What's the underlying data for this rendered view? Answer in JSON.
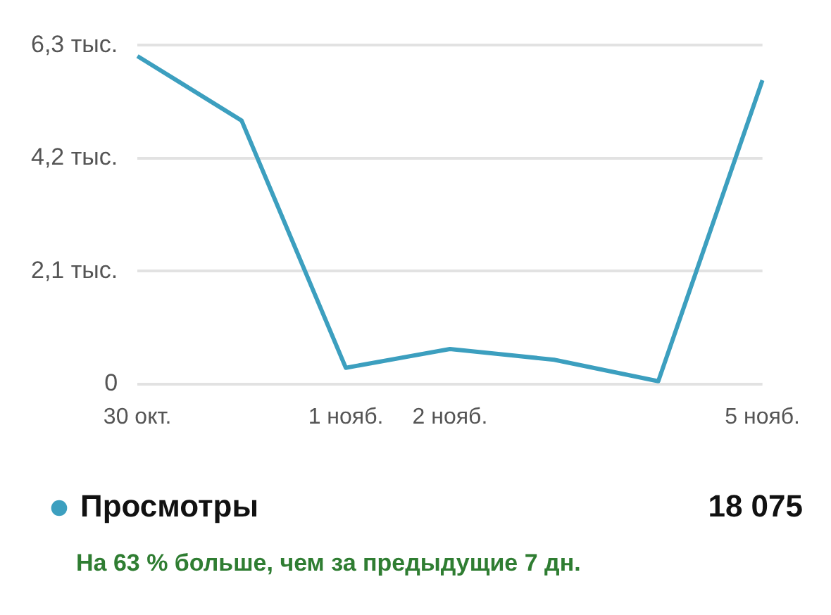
{
  "chart_data": {
    "type": "line",
    "categories": [
      "30 окт.",
      null,
      "1 нояб.",
      "2 нояб.",
      null,
      null,
      "5 нояб."
    ],
    "series": [
      {
        "name": "Просмотры",
        "color": "#3c9fbf",
        "values": [
          6.1,
          4.9,
          0.3,
          0.65,
          0.45,
          0.05,
          5.65
        ]
      }
    ],
    "ylim": [
      0,
      6.3
    ],
    "yticks": [
      0,
      {
        "value": 2.1,
        "label": "2,1 тыс."
      },
      {
        "value": 4.2,
        "label": "4,2 тыс."
      },
      {
        "value": 6.3,
        "label": "6,3 тыс."
      }
    ],
    "grid": "y",
    "legend": "bottom",
    "marker": "none",
    "line_style": "solid",
    "annotations": [
      "18 075",
      "На 63 % больше, чем за предыдущие 7 дн."
    ]
  }
}
